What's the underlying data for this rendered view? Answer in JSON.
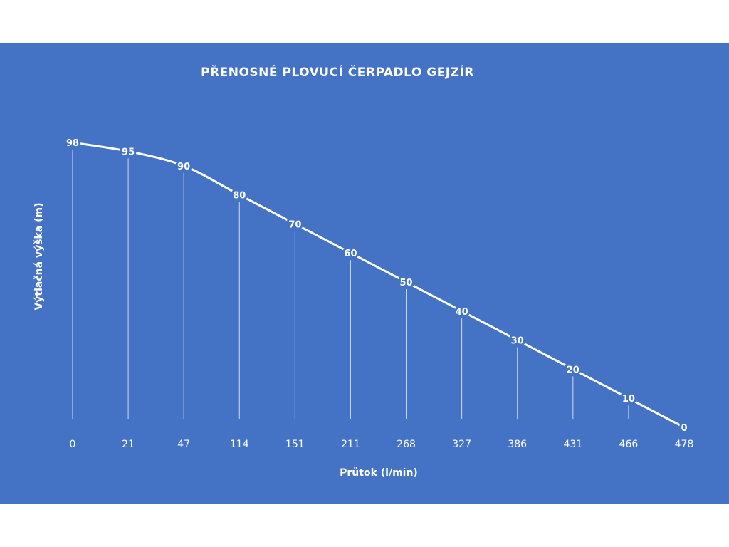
{
  "chart_data": {
    "type": "line",
    "title": "PŘENOSNÉ PLOVUCÍ ČERPADLO GEJZÍR",
    "xlabel": "Průtok (l/min)",
    "ylabel": "Výtlačná výška (m)",
    "categories": [
      "0",
      "21",
      "47",
      "114",
      "151",
      "211",
      "268",
      "327",
      "386",
      "431",
      "466",
      "478"
    ],
    "values": [
      98,
      95,
      90,
      80,
      70,
      60,
      50,
      40,
      30,
      20,
      10,
      0
    ],
    "ylim": [
      0,
      100
    ],
    "drop_lines": true,
    "data_labels": true,
    "grid": false,
    "legend": "none",
    "colors": {
      "background": "#4472c4",
      "line": "#ffffff",
      "text": "#ffffff"
    }
  }
}
